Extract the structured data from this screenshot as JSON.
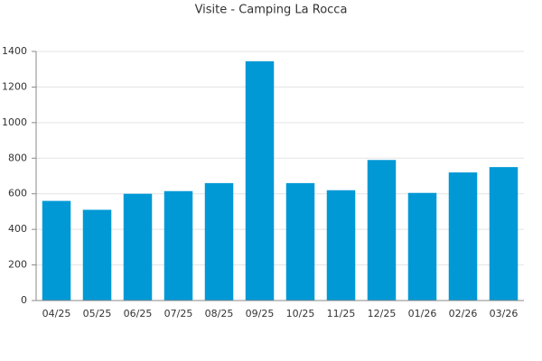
{
  "chart_data": {
    "type": "bar",
    "title": "Visite - Camping La Rocca",
    "categories": [
      "04/25",
      "05/25",
      "06/25",
      "07/25",
      "08/25",
      "09/25",
      "10/25",
      "11/25",
      "12/25",
      "01/26",
      "02/26",
      "03/26"
    ],
    "values": [
      560,
      510,
      600,
      615,
      660,
      1345,
      660,
      620,
      790,
      605,
      720,
      750
    ],
    "color": "#0099d6",
    "ylim": [
      0,
      1400
    ],
    "yticks": [
      0,
      200,
      400,
      600,
      800,
      1000,
      1200,
      1400
    ],
    "grid": true
  }
}
